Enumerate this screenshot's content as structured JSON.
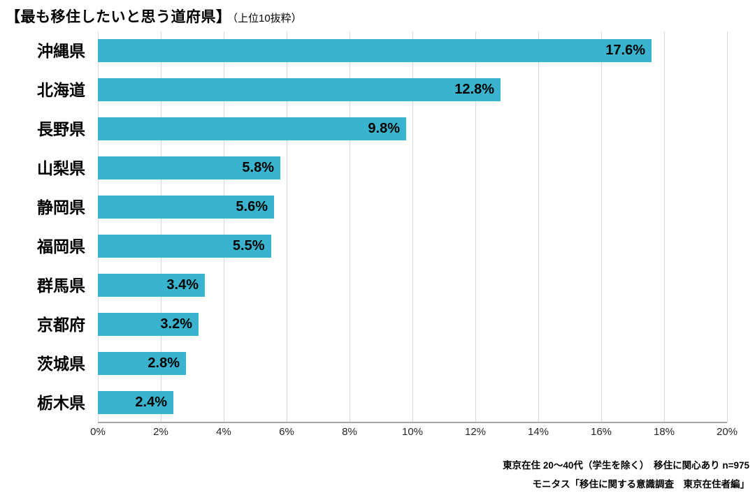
{
  "title": {
    "main": "【最も移住したいと思う道府県】",
    "sub": "（上位10抜粋）"
  },
  "chart_data": {
    "type": "bar",
    "orientation": "horizontal",
    "title": "最も移住したいと思う道府県（上位10抜粋）",
    "categories": [
      "沖縄県",
      "北海道",
      "長野県",
      "山梨県",
      "静岡県",
      "福岡県",
      "群馬県",
      "京都府",
      "茨城県",
      "栃木県"
    ],
    "values": [
      17.6,
      12.8,
      9.8,
      5.8,
      5.6,
      5.5,
      3.4,
      3.2,
      2.8,
      2.4
    ],
    "value_labels": [
      "17.6%",
      "12.8%",
      "9.8%",
      "5.8%",
      "5.6%",
      "5.5%",
      "3.4%",
      "3.2%",
      "2.8%",
      "2.4%"
    ],
    "xlim": [
      0,
      20
    ],
    "x_ticks": [
      "0%",
      "2%",
      "4%",
      "6%",
      "8%",
      "10%",
      "12%",
      "14%",
      "16%",
      "18%",
      "20%"
    ],
    "grid": true,
    "legend": "none",
    "bar_color": "#3ab4ce"
  },
  "footer": {
    "line1": "東京在住 20～40代（学生を除く）　移住に関心あり n=975",
    "line2": "モニタス「移住に関する意識調査　東京在住者編」"
  },
  "colors": {
    "bar": "#3ab4ce",
    "gridline": "#d9d9d9",
    "axis": "#a6a6a6",
    "text": "#000000"
  }
}
